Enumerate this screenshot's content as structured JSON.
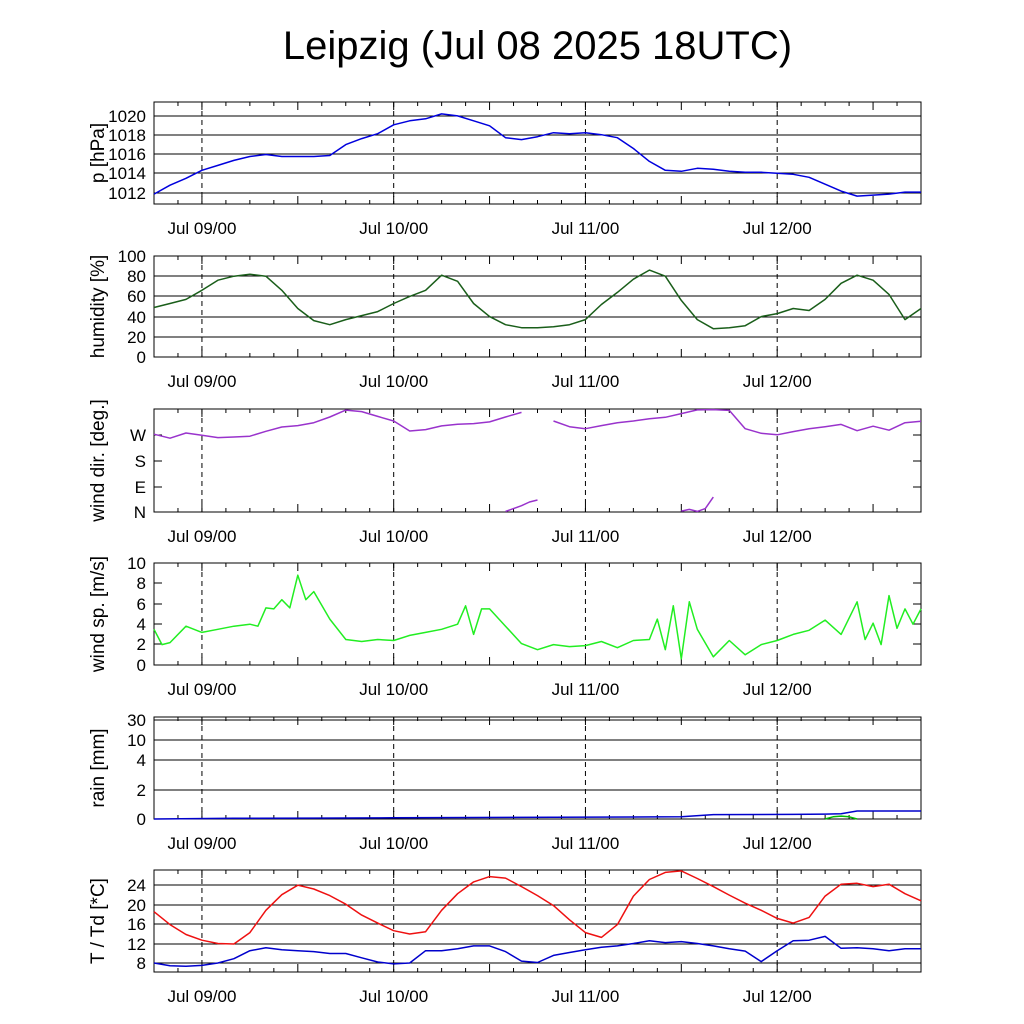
{
  "title": "Leipzig (Jul 08 2025 18UTC)",
  "chart_data": [
    {
      "type": "line",
      "ylabel": "p [hPa]",
      "y_ticks": [
        "1012",
        "1014",
        "1016",
        "1018",
        "1020"
      ],
      "ylim": [
        1011.2,
        1021.5
      ],
      "x_tick_labels": [
        "Jul 09/00",
        "Jul 10/00",
        "Jul 11/00",
        "Jul 12/00"
      ],
      "x_unit": "hours since Jul 08 2025 18UTC",
      "xlim": [
        0,
        96
      ],
      "grid": "horizontal lines at y ticks, dashed vertical at each 00UTC",
      "series": [
        {
          "color": "#0000dd",
          "x": [
            0,
            2,
            4,
            6,
            8,
            10,
            12,
            14,
            16,
            18,
            20,
            22,
            24,
            26,
            28,
            30,
            32,
            34,
            36,
            38,
            40,
            42,
            44,
            46,
            48,
            50,
            52,
            54,
            56,
            58,
            60,
            62,
            64,
            66,
            68,
            70,
            72,
            74,
            76,
            78,
            80,
            82,
            84,
            86,
            88,
            90,
            92,
            94,
            96
          ],
          "y": [
            1012.2,
            1013.1,
            1013.8,
            1014.6,
            1015.1,
            1015.6,
            1016.0,
            1016.2,
            1016.0,
            1016.0,
            1016.0,
            1016.1,
            1017.2,
            1017.8,
            1018.3,
            1019.2,
            1019.6,
            1019.8,
            1020.3,
            1020.1,
            1019.6,
            1019.1,
            1017.9,
            1017.7,
            1018.0,
            1018.4,
            1018.3,
            1018.4,
            1018.2,
            1017.9,
            1016.8,
            1015.5,
            1014.6,
            1014.5,
            1014.8,
            1014.7,
            1014.5,
            1014.4,
            1014.4,
            1014.3,
            1014.2,
            1013.9,
            1013.2,
            1012.5,
            1012.0,
            1012.1,
            1012.2,
            1012.4,
            1012.4
          ]
        }
      ]
    },
    {
      "type": "line",
      "ylabel": "humidity [%]",
      "y_ticks": [
        "0",
        "20",
        "40",
        "60",
        "80",
        "100"
      ],
      "ylim": [
        0,
        100
      ],
      "x_tick_labels": [
        "Jul 09/00",
        "Jul 10/00",
        "Jul 11/00",
        "Jul 12/00"
      ],
      "xlim": [
        0,
        96
      ],
      "series": [
        {
          "color": "#1a5e1a",
          "x": [
            0,
            2,
            4,
            6,
            8,
            10,
            12,
            14,
            16,
            18,
            20,
            22,
            24,
            26,
            28,
            30,
            32,
            34,
            36,
            38,
            40,
            42,
            44,
            46,
            48,
            50,
            52,
            54,
            56,
            58,
            60,
            62,
            64,
            66,
            68,
            70,
            72,
            74,
            76,
            78,
            80,
            82,
            84,
            86,
            88,
            90,
            92,
            94,
            96
          ],
          "y": [
            49,
            53,
            57,
            66,
            76,
            80,
            82,
            80,
            66,
            48,
            36,
            32,
            37,
            41,
            45,
            53,
            60,
            66,
            81,
            75,
            53,
            40,
            32,
            29,
            29,
            30,
            32,
            37,
            52,
            64,
            77,
            86,
            80,
            56,
            37,
            28,
            29,
            31,
            40,
            43,
            48,
            46,
            57,
            73,
            81,
            76,
            62,
            37,
            48
          ]
        }
      ]
    },
    {
      "type": "line",
      "ylabel": "wind dir. [deg.]",
      "y_ticks": [
        "N",
        "E",
        "S",
        "W"
      ],
      "ylim": [
        0,
        360
      ],
      "x_tick_labels": [
        "Jul 09/00",
        "Jul 10/00",
        "Jul 11/00",
        "Jul 12/00"
      ],
      "xlim": [
        0,
        96
      ],
      "series": [
        {
          "color": "#9933cc",
          "x": [
            0,
            2,
            4,
            6,
            8,
            10,
            12,
            14,
            16,
            18,
            20,
            22,
            24,
            26,
            28,
            30,
            32,
            34,
            36,
            38,
            40,
            42,
            44,
            46,
            48,
            50,
            52,
            54,
            56,
            58,
            60,
            62,
            64,
            66,
            68,
            70,
            72,
            74,
            76,
            78,
            80,
            82,
            84,
            86,
            88,
            90,
            92,
            94,
            96
          ],
          "y": [
            272,
            258,
            276,
            268,
            260,
            262,
            265,
            282,
            297,
            302,
            312,
            332,
            356,
            351,
            334,
            318,
            283,
            288,
            301,
            307,
            309,
            315,
            332,
            348,
            null,
            318,
            298,
            291,
            302,
            312,
            318,
            326,
            331,
            344,
            357,
            358,
            355,
            291,
            275,
            270,
            281,
            291,
            298,
            306,
            284,
            300,
            286,
            312,
            317
          ]
        },
        {
          "color": "#9933cc",
          "x": [
            44,
            45,
            46,
            47,
            48
          ],
          "y": [
            2,
            12,
            22,
            35,
            42
          ]
        },
        {
          "color": "#9933cc",
          "x": [
            66,
            67,
            68,
            69,
            70
          ],
          "y": [
            3,
            9,
            2,
            12,
            52
          ]
        }
      ]
    },
    {
      "type": "line",
      "ylabel": "wind sp. [m/s]",
      "y_ticks": [
        "0",
        "2",
        "4",
        "6",
        "8",
        "10"
      ],
      "ylim": [
        0,
        10
      ],
      "x_tick_labels": [
        "Jul 09/00",
        "Jul 10/00",
        "Jul 11/00",
        "Jul 12/00"
      ],
      "xlim": [
        0,
        96
      ],
      "series": [
        {
          "color": "#22ee22",
          "x": [
            0,
            1,
            2,
            4,
            6,
            8,
            10,
            12,
            13,
            14,
            15,
            16,
            17,
            18,
            19,
            20,
            22,
            24,
            26,
            28,
            30,
            32,
            34,
            36,
            38,
            39,
            40,
            41,
            42,
            44,
            46,
            48,
            50,
            52,
            54,
            56,
            58,
            60,
            62,
            63,
            64,
            65,
            66,
            67,
            68,
            70,
            72,
            74,
            76,
            78,
            80,
            82,
            84,
            86,
            88,
            89,
            90,
            91,
            92,
            93,
            94,
            95,
            96
          ],
          "y": [
            3.5,
            2.0,
            2.2,
            3.8,
            3.2,
            3.5,
            3.8,
            4.0,
            3.8,
            5.6,
            5.5,
            6.4,
            5.6,
            8.8,
            6.4,
            7.2,
            4.5,
            2.5,
            2.3,
            2.5,
            2.4,
            2.9,
            3.2,
            3.5,
            4.0,
            5.8,
            3.0,
            5.5,
            5.5,
            3.8,
            2.1,
            1.5,
            2.0,
            1.8,
            1.9,
            2.3,
            1.7,
            2.4,
            2.5,
            4.5,
            1.5,
            5.8,
            0.6,
            6.2,
            3.5,
            0.8,
            2.4,
            1.0,
            2.0,
            2.4,
            3.0,
            3.4,
            4.4,
            3.0,
            6.2,
            2.5,
            4.1,
            2.0,
            6.8,
            3.6,
            5.5,
            4.0,
            5.5
          ]
        }
      ]
    },
    {
      "type": "area",
      "ylabel": "rain [mm]",
      "y_ticks": [
        "0",
        "2",
        "4",
        "10",
        "30"
      ],
      "scale": "nonlinear",
      "x_tick_labels": [
        "Jul 09/00",
        "Jul 10/00",
        "Jul 11/00",
        "Jul 12/00"
      ],
      "xlim": [
        0,
        96
      ],
      "series": [
        {
          "color": "#0000cc",
          "x": [
            0,
            10,
            20,
            30,
            40,
            50,
            60,
            66,
            70,
            80,
            84,
            86,
            88,
            96
          ],
          "y": [
            0,
            0.05,
            0.06,
            0.08,
            0.1,
            0.12,
            0.14,
            0.16,
            0.3,
            0.32,
            0.34,
            0.36,
            0.55,
            0.55
          ]
        },
        {
          "color": "#00bb00",
          "x": [
            84,
            85,
            86,
            87,
            88
          ],
          "y": [
            0,
            0.15,
            0.2,
            0.15,
            0
          ]
        }
      ]
    },
    {
      "type": "line",
      "ylabel": "T / Td [*C]",
      "y_ticks": [
        "8",
        "12",
        "16",
        "20",
        "24"
      ],
      "ylim": [
        5.5,
        27
      ],
      "x_tick_labels": [
        "Jul 09/00",
        "Jul 10/00",
        "Jul 11/00",
        "Jul 12/00"
      ],
      "xlim": [
        0,
        96
      ],
      "series": [
        {
          "color": "#ee1111",
          "x": [
            0,
            2,
            4,
            6,
            8,
            10,
            12,
            14,
            16,
            18,
            20,
            22,
            24,
            26,
            28,
            30,
            32,
            34,
            36,
            38,
            40,
            42,
            44,
            46,
            48,
            50,
            52,
            54,
            56,
            58,
            60,
            62,
            64,
            66,
            68,
            70,
            72,
            74,
            76,
            78,
            80,
            82,
            84,
            86,
            88,
            90,
            92,
            94,
            96
          ],
          "y": [
            18.2,
            15.5,
            13.4,
            12.2,
            11.5,
            11.4,
            13.8,
            18.5,
            21.8,
            23.8,
            23.0,
            21.6,
            19.8,
            17.5,
            15.8,
            14.2,
            13.5,
            14.0,
            18.5,
            22.0,
            24.5,
            25.6,
            25.3,
            23.5,
            21.6,
            19.5,
            16.5,
            13.8,
            12.8,
            15.5,
            21.5,
            25.0,
            26.5,
            26.8,
            25.2,
            23.5,
            21.7,
            20.0,
            18.5,
            16.8,
            15.8,
            17.0,
            21.5,
            24.0,
            24.2,
            23.5,
            24.0,
            22.0,
            20.5
          ]
        },
        {
          "color": "#0000cc",
          "x": [
            0,
            2,
            4,
            6,
            8,
            10,
            12,
            14,
            16,
            18,
            20,
            22,
            24,
            26,
            28,
            30,
            32,
            34,
            36,
            38,
            40,
            42,
            44,
            46,
            48,
            50,
            52,
            54,
            56,
            58,
            60,
            62,
            64,
            66,
            68,
            70,
            72,
            74,
            76,
            78,
            80,
            82,
            84,
            86,
            88,
            90,
            92,
            94,
            96
          ],
          "y": [
            7.4,
            6.8,
            6.7,
            6.9,
            7.4,
            8.3,
            10.0,
            10.6,
            10.2,
            10.0,
            9.8,
            9.4,
            9.4,
            8.5,
            7.6,
            7.2,
            7.4,
            10.0,
            10.0,
            10.4,
            11.0,
            11.0,
            9.8,
            7.8,
            7.5,
            9.0,
            9.6,
            10.2,
            10.7,
            11.0,
            11.5,
            12.1,
            11.7,
            11.9,
            11.5,
            11.0,
            10.4,
            9.9,
            7.7,
            10.0,
            12.1,
            12.2,
            13.0,
            10.5,
            10.6,
            10.4,
            10.0,
            10.4,
            10.4
          ]
        }
      ]
    }
  ]
}
